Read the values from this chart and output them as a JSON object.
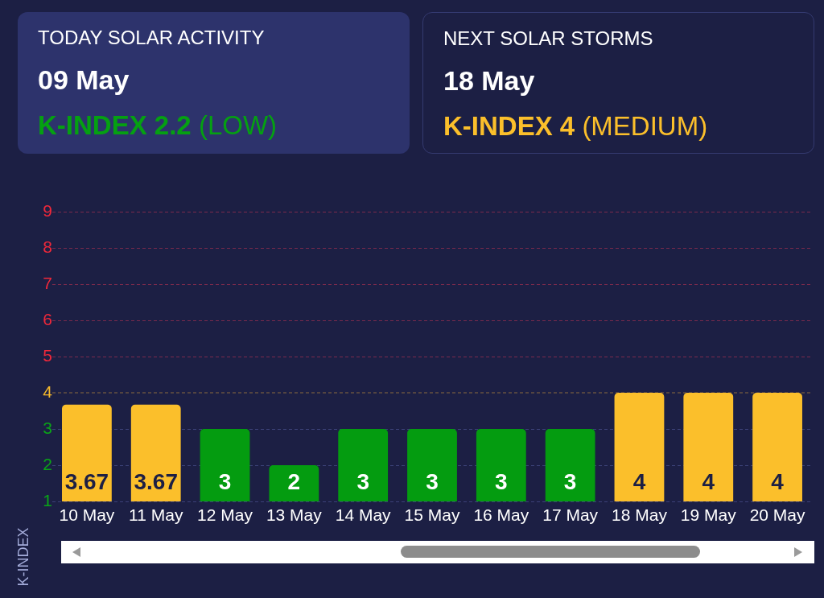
{
  "chart_data": [
    {
      "type": "other",
      "title": "TODAY SOLAR ACTIVITY",
      "subtitle": "09 May",
      "annotations": [
        "K-INDEX 2.2",
        "(LOW)"
      ],
      "color": "#05a012"
    },
    {
      "type": "other",
      "title": "NEXT SOLAR STORMS",
      "subtitle": "18 May",
      "annotations": [
        "K-INDEX 4",
        "(MEDIUM)"
      ],
      "color": "#fbbf2b"
    },
    {
      "type": "bar",
      "ylabel": "K-INDEX",
      "categories": [
        "10 May",
        "11 May",
        "12 May",
        "13 May",
        "14 May",
        "15 May",
        "16 May",
        "17 May",
        "18 May",
        "19 May",
        "20 May"
      ],
      "values": [
        3.67,
        3.67,
        3,
        2,
        3,
        3,
        3,
        3,
        4,
        4,
        4
      ],
      "colors": [
        "#fbbf2b",
        "#fbbf2b",
        "#049c10",
        "#049c10",
        "#049c10",
        "#049c10",
        "#049c10",
        "#049c10",
        "#fbbf2b",
        "#fbbf2b",
        "#fbbf2b"
      ],
      "ylim": [
        1,
        9
      ],
      "yticks": [
        1,
        2,
        3,
        4,
        5,
        6,
        7,
        8,
        9
      ],
      "grid": "y",
      "data_labels": true,
      "ref_lines": [
        {
          "axis": "y",
          "value": 4,
          "color": "#8a6a3e",
          "line_style": "dashed"
        }
      ]
    }
  ]
}
